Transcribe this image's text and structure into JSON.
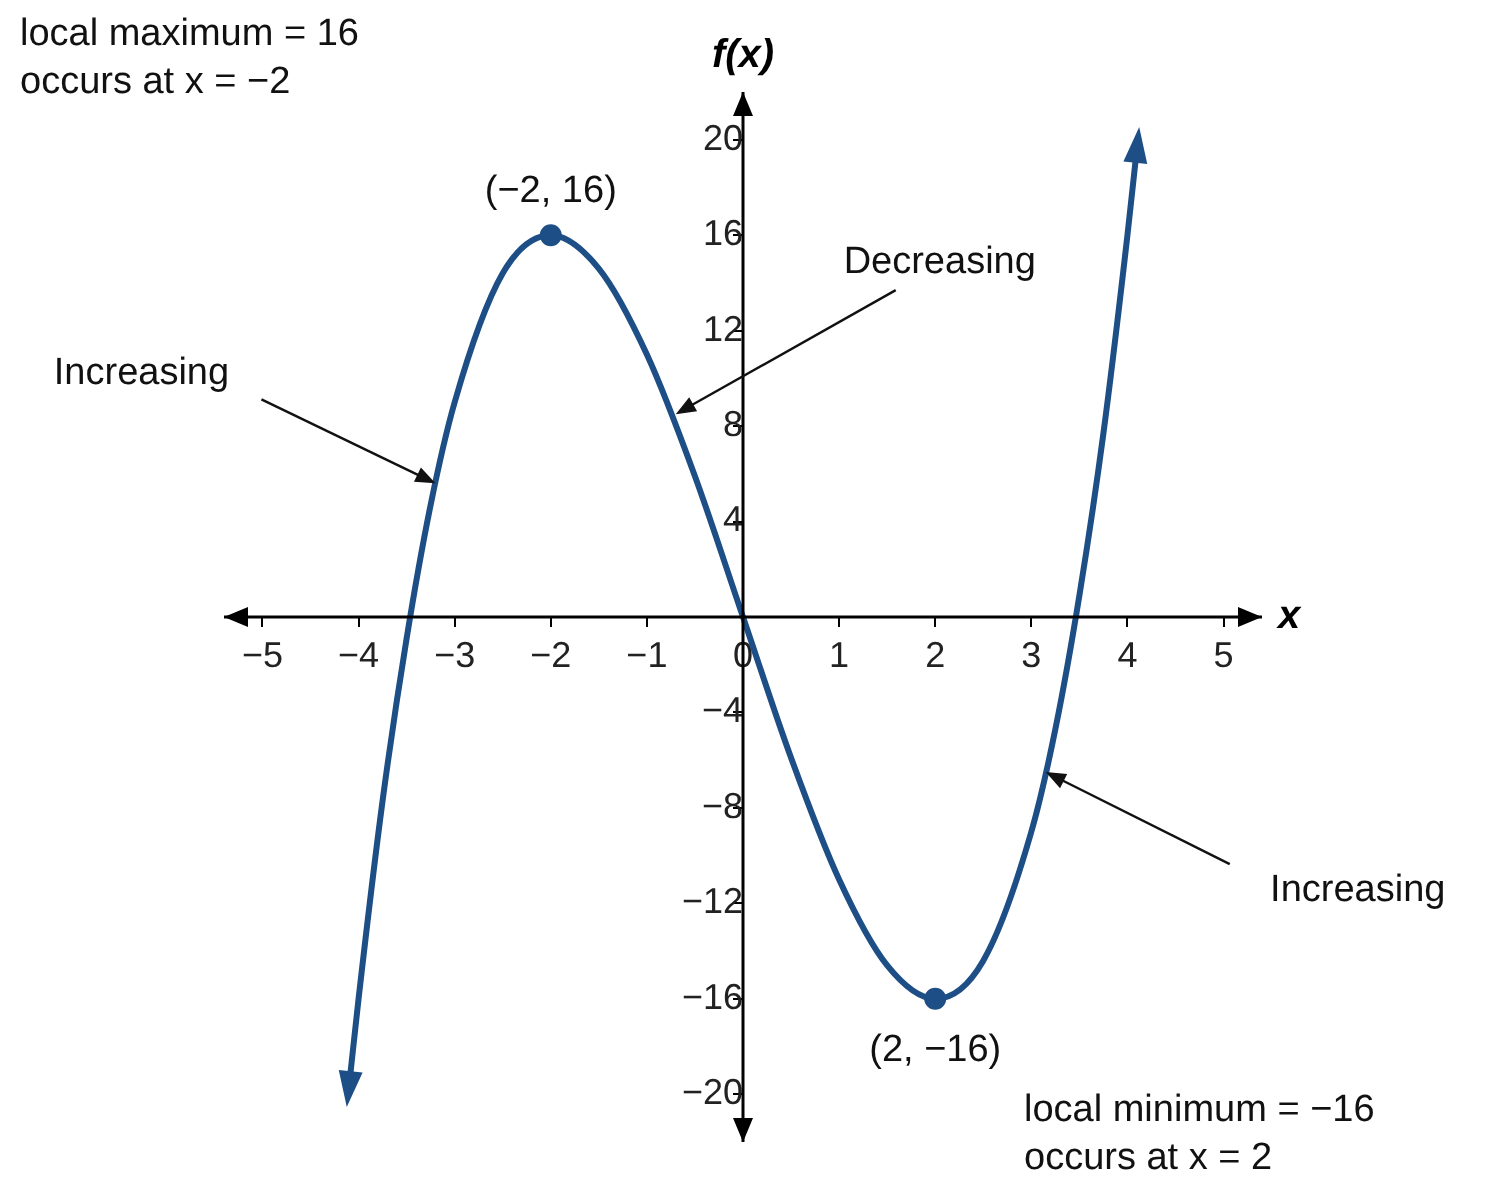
{
  "chart_data": {
    "type": "line",
    "xlabel": "x",
    "ylabel": "f(x)",
    "xlim": [
      -5.4,
      5.4
    ],
    "ylim": [
      -22,
      22
    ],
    "xticks": [
      {
        "value": -5,
        "label": "−5"
      },
      {
        "value": -4,
        "label": "−4"
      },
      {
        "value": -3,
        "label": "−3"
      },
      {
        "value": -2,
        "label": "−2"
      },
      {
        "value": -1,
        "label": "−1"
      },
      0,
      1,
      2,
      3,
      4,
      5
    ],
    "yticks": [
      {
        "value": -20,
        "label": "−20"
      },
      {
        "value": -16,
        "label": "−16"
      },
      {
        "value": -12,
        "label": "−12"
      },
      {
        "value": -8,
        "label": "−8"
      },
      {
        "value": -4,
        "label": "−4"
      },
      {
        "value": 0,
        "label": null
      },
      4,
      8,
      12,
      16,
      20
    ],
    "series": [
      {
        "type": "line",
        "color": "#1d4f86",
        "x": [
          -4.1,
          -4,
          -3.75,
          -3.5,
          -3.25,
          -3,
          -2.5,
          -2,
          -1.5,
          -1,
          -0.5,
          0,
          0.5,
          1,
          1.5,
          2,
          2.5,
          3,
          3.25,
          3.5,
          3.75,
          4,
          4.1
        ],
        "values": [
          -19.7,
          -16,
          -7.7,
          -0.9,
          4.7,
          9,
          14.4,
          16,
          14.6,
          11,
          5.9,
          0,
          -5.9,
          -11,
          -14.6,
          -16,
          -14.4,
          -9,
          -4.7,
          0.9,
          7.7,
          16,
          19.7
        ]
      },
      {
        "type": "scatter",
        "color": "#1d4f86",
        "x": [
          -2,
          2
        ],
        "values": [
          16,
          -16
        ]
      }
    ],
    "annotations": [
      {
        "text": "(−2, 16)",
        "x": -2,
        "y": 16
      },
      {
        "text": "Decreasing",
        "x": -0.7,
        "y": 8.5
      },
      {
        "text": "Increasing",
        "x": -3.2,
        "y": 5.6
      },
      {
        "text": "(2, −16)",
        "x": 2,
        "y": -16
      },
      {
        "text": "Increasing",
        "x": 3.15,
        "y": -6.5
      },
      "local maximum = 16\noccurs at x = −2",
      "local minimum = −16\noccurs at x = 2"
    ]
  }
}
